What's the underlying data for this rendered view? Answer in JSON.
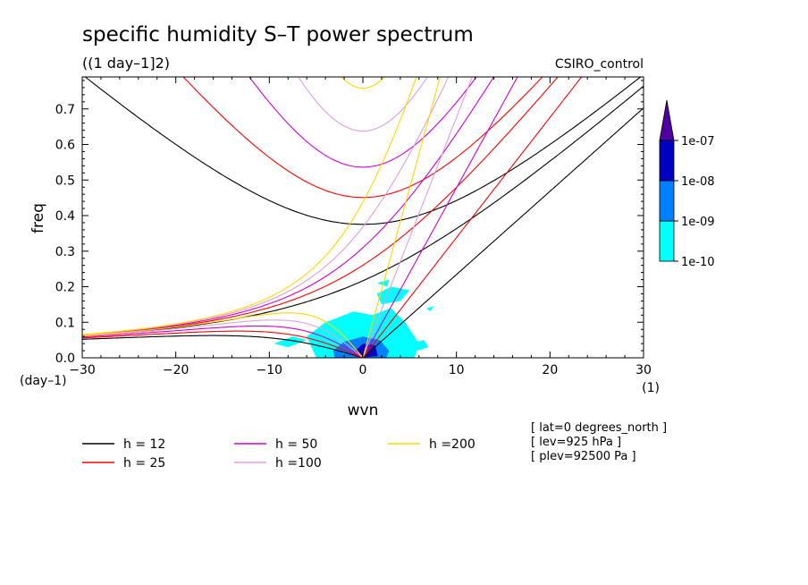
{
  "chart_data": {
    "type": "contour",
    "title": "specific humidity S–T power spectrum",
    "subtitle": "((1 day–1]2)",
    "model_label": "CSIRO_control",
    "xlabel": "wvn",
    "ylabel": "freq",
    "x_unit": "(1)",
    "y_unit": "(day–1)",
    "xlim": [
      -30,
      30
    ],
    "ylim": [
      0,
      0.79
    ],
    "x_ticks": [
      -30,
      -20,
      -10,
      0,
      10,
      20,
      30
    ],
    "x_tick_labels": [
      "−30",
      "−20",
      "−10",
      "0",
      "10",
      "20",
      "30"
    ],
    "y_ticks": [
      0,
      0.1,
      0.2,
      0.3,
      0.4,
      0.5,
      0.6,
      0.7
    ],
    "y_tick_labels": [
      "0.0",
      "0.1",
      "0.2",
      "0.3",
      "0.4",
      "0.5",
      "0.6",
      "0.7"
    ],
    "series": [
      {
        "name": "h = 12",
        "h": 12,
        "color": "#000000"
      },
      {
        "name": "h = 25",
        "h": 25,
        "color": "#ff0000"
      },
      {
        "name": "h = 50",
        "h": 50,
        "color": "#d000d0"
      },
      {
        "name": "h =100",
        "h": 100,
        "color": "#dda0dd"
      },
      {
        "name": "h =200",
        "h": 200,
        "color": "#ffd700"
      }
    ],
    "colorbar": {
      "levels": [
        "1e-10",
        "1e-09",
        "1e-08",
        "1e-07"
      ],
      "colors": [
        "#00ffff",
        "#0080ff",
        "#0000c0",
        "#5000a0"
      ]
    },
    "annotations": [
      "[ lat=0 degrees_north ]",
      "[ lev=925 hPa ]",
      "[ plev=92500 Pa ]"
    ]
  }
}
